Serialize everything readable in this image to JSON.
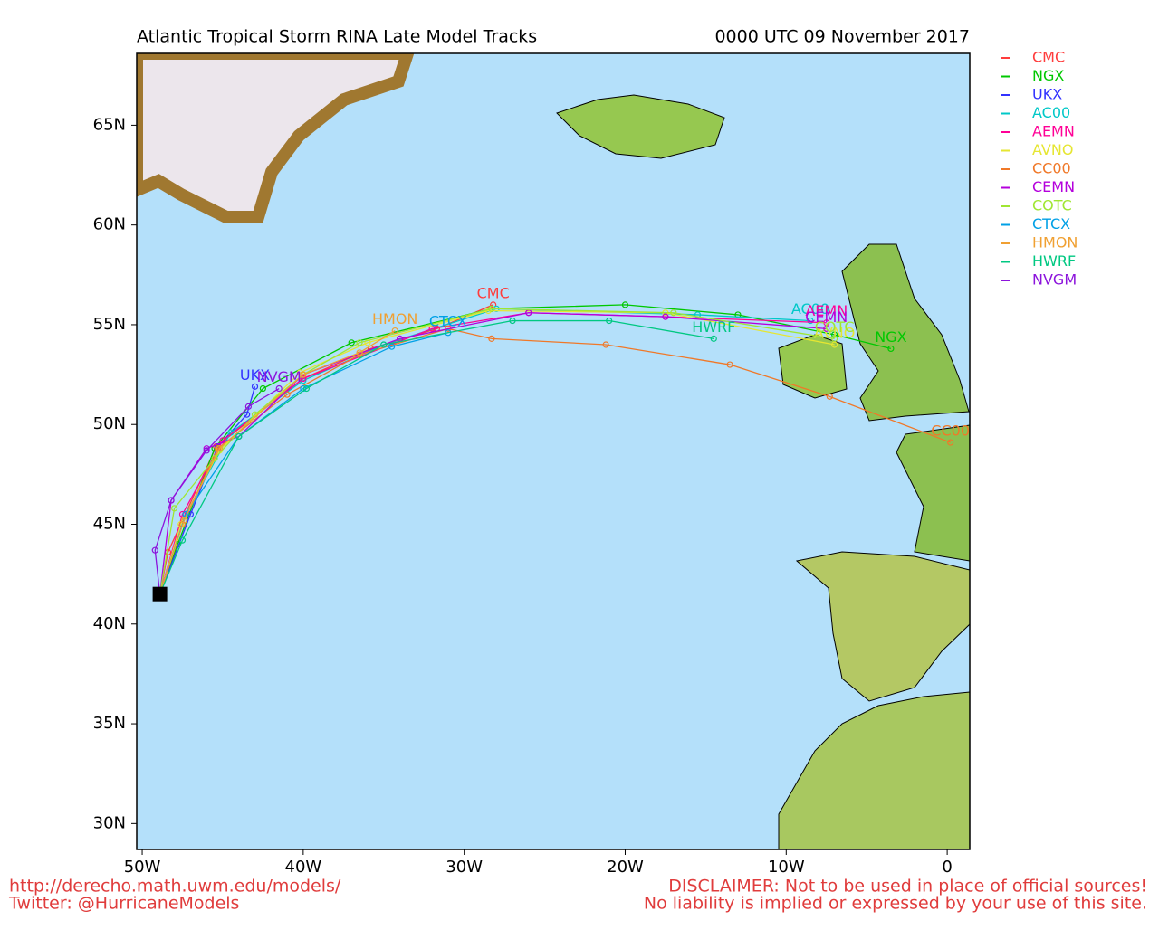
{
  "chart_data": {
    "type": "track-map",
    "title": "Atlantic Tropical Storm RINA Late Model Tracks",
    "subtitle": "0000 UTC 09 November 2017",
    "footer_left": [
      "http://derecho.math.uwm.edu/models/",
      "Twitter: @HurricaneModels"
    ],
    "footer_right": [
      "DISCLAIMER: Not to be used in place of official sources!",
      "No liability is implied or expressed by your use of this site."
    ],
    "xlim": [
      -50.34,
      1.4
    ],
    "ylim": [
      28.7,
      68.6
    ],
    "xticks": [
      {
        "value": -50,
        "label": "50W"
      },
      {
        "value": -40,
        "label": "40W"
      },
      {
        "value": -30,
        "label": "30W"
      },
      {
        "value": -20,
        "label": "20W"
      },
      {
        "value": -10,
        "label": "10W"
      },
      0
    ],
    "yticks": [
      {
        "value": 30,
        "label": "30N"
      },
      {
        "value": 35,
        "label": "35N"
      },
      {
        "value": 40,
        "label": "40N"
      },
      {
        "value": 45,
        "label": "45N"
      },
      {
        "value": 50,
        "label": "50N"
      },
      {
        "value": 55,
        "label": "55N"
      },
      {
        "value": 60,
        "label": "60N"
      },
      {
        "value": 65,
        "label": "65N"
      }
    ],
    "legend": "outside-right",
    "series": [
      {
        "name": "CMC",
        "color": "#ff3c3c",
        "x": [
          -48.9,
          -48.4,
          -45.4,
          -40.0,
          -35.8,
          -31.7,
          -28.2
        ],
        "y": [
          41.5,
          43.6,
          48.9,
          52.3,
          53.8,
          54.8,
          56.0
        ]
      },
      {
        "name": "NGX",
        "color": "#00c800",
        "x": [
          -48.9,
          -47.8,
          -45.5,
          -42.5,
          -37.0,
          -28.3,
          -20.0,
          -13.0,
          -7.0,
          -3.5
        ],
        "y": [
          41.5,
          44.0,
          48.8,
          51.8,
          54.1,
          55.8,
          56.0,
          55.5,
          54.5,
          53.8
        ]
      },
      {
        "name": "UKX",
        "color": "#3232ff",
        "x": [
          -48.9,
          -47.0,
          -45.3,
          -43.5,
          -43.0
        ],
        "y": [
          41.5,
          45.5,
          48.9,
          50.5,
          51.9
        ]
      },
      {
        "name": "AC00",
        "color": "#00c8c8",
        "x": [
          -48.9,
          -47.3,
          -44.5,
          -40.0,
          -35.0,
          -28.0,
          -15.5,
          -8.5
        ],
        "y": [
          41.5,
          45.5,
          49.6,
          52.2,
          54.0,
          55.8,
          55.5,
          55.2
        ]
      },
      {
        "name": "AEMN",
        "color": "#ff0096",
        "x": [
          -48.9,
          -47.5,
          -45.0,
          -40.0,
          -32.0,
          -26.0,
          -17.5,
          -7.5
        ],
        "y": [
          41.5,
          45.5,
          49.2,
          52.3,
          54.8,
          55.6,
          55.4,
          55.1
        ]
      },
      {
        "name": "AVNO",
        "color": "#e6e632",
        "x": [
          -48.9,
          -47.6,
          -45.2,
          -40.2,
          -36.0,
          -28.5,
          -17.5,
          -7.0
        ],
        "y": [
          41.5,
          45.0,
          48.7,
          52.6,
          54.1,
          55.7,
          55.6,
          54.0
        ]
      },
      {
        "name": "CC00",
        "color": "#f07828",
        "x": [
          -48.9,
          -47.5,
          -45.3,
          -41.0,
          -36.5,
          -31.0,
          -28.3,
          -21.2,
          -13.5,
          -7.3,
          0.2
        ],
        "y": [
          41.5,
          45.0,
          48.8,
          51.5,
          53.5,
          54.8,
          54.3,
          54.0,
          53.0,
          51.4,
          49.1
        ]
      },
      {
        "name": "CEMN",
        "color": "#b400dc",
        "x": [
          -48.9,
          -48.2,
          -46.0,
          -44.0,
          -40.0,
          -34.0,
          -26.0,
          -17.5,
          -7.5
        ],
        "y": [
          41.5,
          46.2,
          48.8,
          49.4,
          52.5,
          54.3,
          55.6,
          55.4,
          54.8
        ]
      },
      {
        "name": "COTC",
        "color": "#a0e632",
        "x": [
          -48.9,
          -48.0,
          -45.5,
          -43.0,
          -40.0,
          -36.5,
          -28.3,
          -17.0,
          -7.0
        ],
        "y": [
          41.5,
          45.8,
          48.3,
          50.5,
          52.5,
          54.1,
          55.8,
          55.6,
          54.3
        ]
      },
      {
        "name": "CTCX",
        "color": "#00a0e6",
        "x": [
          -48.9,
          -47.3,
          -44.0,
          -40.0,
          -34.5,
          -31.0
        ],
        "y": [
          41.5,
          45.5,
          49.4,
          51.8,
          53.9,
          54.6
        ]
      },
      {
        "name": "HMON",
        "color": "#f0a032",
        "x": [
          -48.9,
          -47.4,
          -45.2,
          -40.0,
          -36.5,
          -34.3
        ],
        "y": [
          41.5,
          45.2,
          48.8,
          52.5,
          53.6,
          54.7
        ]
      },
      {
        "name": "HWRF",
        "color": "#00c882",
        "x": [
          -48.9,
          -47.5,
          -44.0,
          -39.8,
          -35.0,
          -27.0,
          -21.0,
          -14.5
        ],
        "y": [
          41.5,
          44.2,
          49.4,
          51.8,
          54.0,
          55.2,
          55.2,
          54.3
        ]
      },
      {
        "name": "NVGM",
        "color": "#8c14dc",
        "x": [
          -48.9,
          -49.2,
          -48.2,
          -46.0,
          -43.4,
          -41.5
        ],
        "y": [
          41.5,
          43.7,
          46.2,
          48.7,
          50.9,
          51.8
        ]
      }
    ]
  }
}
